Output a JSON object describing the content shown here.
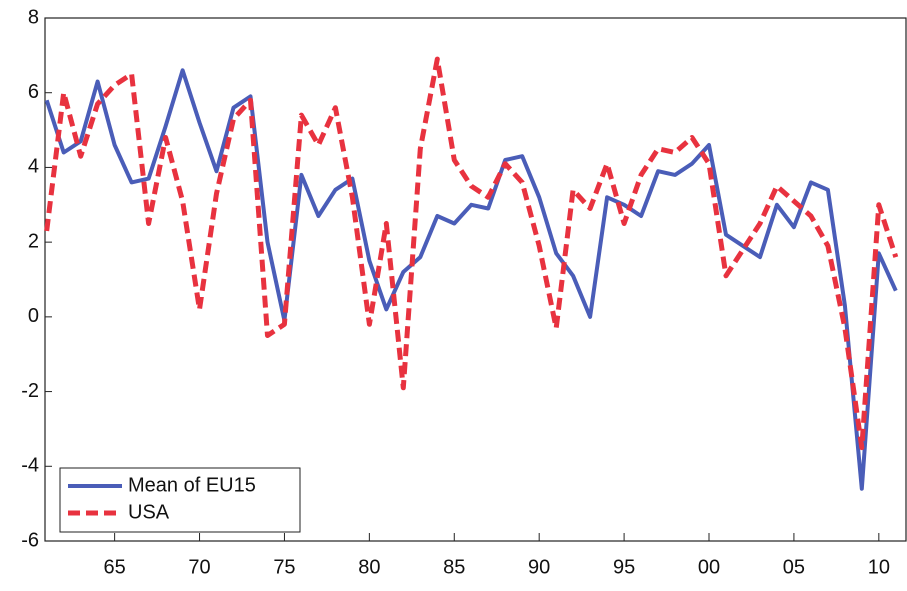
{
  "chart_data": {
    "type": "line",
    "x": [
      1961,
      1962,
      1963,
      1964,
      1965,
      1966,
      1967,
      1968,
      1969,
      1970,
      1971,
      1972,
      1973,
      1974,
      1975,
      1976,
      1977,
      1978,
      1979,
      1980,
      1981,
      1982,
      1983,
      1984,
      1985,
      1986,
      1987,
      1988,
      1989,
      1990,
      1991,
      1992,
      1993,
      1994,
      1995,
      1996,
      1997,
      1998,
      1999,
      2000,
      2001,
      2002,
      2003,
      2004,
      2005,
      2006,
      2007,
      2008,
      2009,
      2010,
      2011
    ],
    "series": [
      {
        "name": "Mean of EU15",
        "color": "#4a5db8",
        "dash": false,
        "values": [
          5.8,
          4.4,
          4.7,
          6.3,
          4.6,
          3.6,
          3.7,
          5.1,
          6.6,
          5.2,
          3.9,
          5.6,
          5.9,
          2.0,
          -0.1,
          3.8,
          2.7,
          3.4,
          3.7,
          1.5,
          0.2,
          1.2,
          1.6,
          2.7,
          2.5,
          3.0,
          2.9,
          4.2,
          4.3,
          3.2,
          1.7,
          1.1,
          0.0,
          3.2,
          3.0,
          2.7,
          3.9,
          3.8,
          4.1,
          4.6,
          2.2,
          1.9,
          1.6,
          3.0,
          2.4,
          3.6,
          3.4,
          0.3,
          -4.6,
          1.7,
          0.7
        ]
      },
      {
        "name": "USA",
        "color": "#e8323f",
        "dash": true,
        "values": [
          2.3,
          6.0,
          4.3,
          5.7,
          6.2,
          6.5,
          2.5,
          4.8,
          3.1,
          0.2,
          3.3,
          5.3,
          5.8,
          -0.5,
          -0.2,
          5.4,
          4.6,
          5.6,
          3.2,
          -0.2,
          2.5,
          -1.9,
          4.5,
          6.9,
          4.2,
          3.5,
          3.2,
          4.1,
          3.6,
          1.9,
          -0.3,
          3.4,
          2.9,
          4.1,
          2.5,
          3.8,
          4.5,
          4.4,
          4.8,
          4.1,
          1.1,
          1.8,
          2.5,
          3.5,
          3.1,
          2.7,
          1.9,
          -0.3,
          -3.5,
          3.0,
          1.6
        ]
      }
    ],
    "xlim": [
      1960.9,
      2011.6
    ],
    "xticks": [
      {
        "value": 1965,
        "label": "65"
      },
      {
        "value": 1970,
        "label": "70"
      },
      {
        "value": 1975,
        "label": "75"
      },
      {
        "value": 1980,
        "label": "80"
      },
      {
        "value": 1985,
        "label": "85"
      },
      {
        "value": 1990,
        "label": "90"
      },
      {
        "value": 1995,
        "label": "95"
      },
      {
        "value": 2000,
        "label": "00"
      },
      {
        "value": 2005,
        "label": "05"
      },
      {
        "value": 2010,
        "label": "10"
      }
    ],
    "ylim": [
      -6,
      8
    ],
    "yticks": [
      -6,
      -4,
      -2,
      0,
      2,
      4,
      6,
      8
    ],
    "legend": "lower left"
  }
}
